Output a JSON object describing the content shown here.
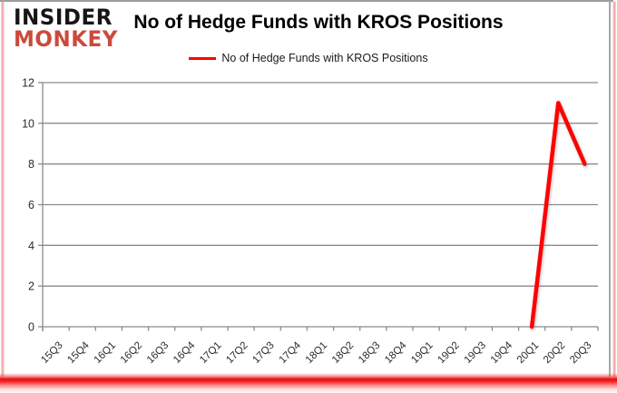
{
  "logo": {
    "line1": "INSIDER",
    "line2": "MONKEY"
  },
  "header": {
    "title": "No of Hedge Funds with KROS Positions"
  },
  "legend": {
    "label": "No of Hedge Funds with KROS Positions"
  },
  "colors": {
    "series": "#fe0000",
    "grid": "#8a8a8a",
    "axis": "#8a8a8a",
    "tick_label": "#2b2b2b",
    "title": "#000000",
    "logo_black": "#161616",
    "logo_red": "#cb4a3c",
    "border_pink": "#ee9694",
    "border_gray": "#a6a6a6",
    "bottom_glow_red": "#ff2020"
  },
  "chart_data": {
    "type": "line",
    "title": "No of Hedge Funds with KROS Positions",
    "categories": [
      "15Q3",
      "15Q4",
      "16Q1",
      "16Q2",
      "16Q3",
      "16Q4",
      "17Q1",
      "17Q2",
      "17Q3",
      "17Q4",
      "18Q1",
      "18Q2",
      "18Q3",
      "18Q4",
      "19Q1",
      "19Q2",
      "19Q3",
      "19Q4",
      "20Q1",
      "20Q2",
      "20Q3"
    ],
    "series": [
      {
        "name": "No of Hedge Funds with KROS Positions",
        "color": "#fe0000",
        "values": [
          null,
          null,
          null,
          null,
          null,
          null,
          null,
          null,
          null,
          null,
          null,
          null,
          null,
          null,
          null,
          null,
          null,
          null,
          0,
          11,
          8
        ]
      }
    ],
    "xlabel": "",
    "ylabel": "",
    "ylim": [
      0,
      12
    ],
    "yticks": [
      0,
      2,
      4,
      6,
      8,
      10,
      12
    ],
    "grid": "horizontal",
    "legend_position": "top-center",
    "x_label_rotation_deg": -45
  }
}
